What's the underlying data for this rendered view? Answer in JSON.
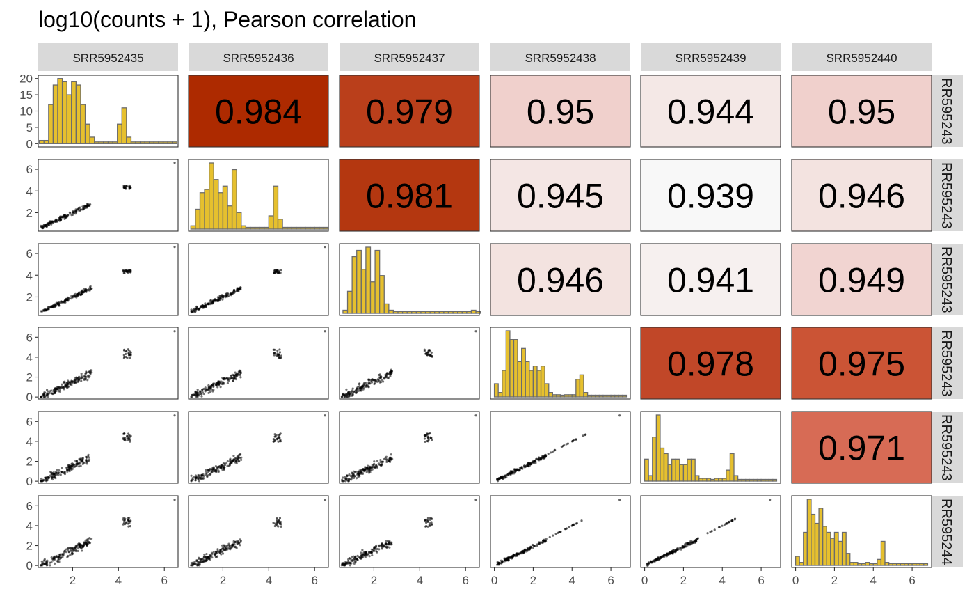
{
  "title": "log10(counts + 1), Pearson correlation",
  "samples": [
    "SRR5952435",
    "SRR5952436",
    "SRR5952437",
    "SRR5952438",
    "SRR5952439",
    "SRR5952440"
  ],
  "row_strip_labels": [
    "RR595243",
    "RR595243",
    "RR595243",
    "RR595243",
    "RR595243",
    "RR595244"
  ],
  "chart_data": {
    "type": "scatter",
    "layout": "pairs-matrix",
    "title": "log10(counts + 1), Pearson correlation",
    "diagonal": "histogram",
    "lower": "scatter",
    "upper": "correlation-tile",
    "correlations": [
      {
        "row": "SRR5952435",
        "col": "SRR5952436",
        "value": "0.984",
        "fill": "#ad2a00"
      },
      {
        "row": "SRR5952435",
        "col": "SRR5952437",
        "value": "0.979",
        "fill": "#ba3f1b"
      },
      {
        "row": "SRR5952435",
        "col": "SRR5952438",
        "value": "0.95",
        "fill": "#f0d0cc"
      },
      {
        "row": "SRR5952435",
        "col": "SRR5952439",
        "value": "0.944",
        "fill": "#f4e8e6"
      },
      {
        "row": "SRR5952435",
        "col": "SRR5952440",
        "value": "0.95",
        "fill": "#f0d0cc"
      },
      {
        "row": "SRR5952436",
        "col": "SRR5952437",
        "value": "0.981",
        "fill": "#b43710"
      },
      {
        "row": "SRR5952436",
        "col": "SRR5952438",
        "value": "0.945",
        "fill": "#f4e6e4"
      },
      {
        "row": "SRR5952436",
        "col": "SRR5952439",
        "value": "0.939",
        "fill": "#f8f8f8"
      },
      {
        "row": "SRR5952436",
        "col": "SRR5952440",
        "value": "0.946",
        "fill": "#f3e3e0"
      },
      {
        "row": "SRR5952437",
        "col": "SRR5952438",
        "value": "0.946",
        "fill": "#f3e3e0"
      },
      {
        "row": "SRR5952437",
        "col": "SRR5952439",
        "value": "0.941",
        "fill": "#f6f0ef"
      },
      {
        "row": "SRR5952437",
        "col": "SRR5952440",
        "value": "0.949",
        "fill": "#f1d4d1"
      },
      {
        "row": "SRR5952438",
        "col": "SRR5952439",
        "value": "0.978",
        "fill": "#c14728"
      },
      {
        "row": "SRR5952438",
        "col": "SRR5952440",
        "value": "0.975",
        "fill": "#cb5435"
      },
      {
        "row": "SRR5952439",
        "col": "SRR5952440",
        "value": "0.971",
        "fill": "#d76b55"
      }
    ],
    "x_ticks": [
      [
        2,
        4,
        6
      ],
      [
        2,
        4,
        6
      ],
      [
        2,
        4,
        6
      ],
      [
        0,
        2,
        4,
        6
      ],
      [
        0,
        2,
        4,
        6
      ],
      [
        0,
        2,
        4,
        6
      ]
    ],
    "x_ranges": [
      [
        0.5,
        6.6
      ],
      [
        0.5,
        6.6
      ],
      [
        0.5,
        6.6
      ],
      [
        -0.2,
        7.0
      ],
      [
        -0.2,
        7.0
      ],
      [
        -0.2,
        7.0
      ]
    ],
    "y_ticks": [
      [
        0,
        5,
        10,
        15,
        20
      ],
      [
        2,
        4,
        6
      ],
      [
        2,
        4,
        6
      ],
      [
        0,
        2,
        4,
        6
      ],
      [
        0,
        2,
        4,
        6
      ],
      [
        0,
        2,
        4,
        6
      ]
    ],
    "y_ranges": [
      [
        -1,
        21
      ],
      [
        0.3,
        6.9
      ],
      [
        0.3,
        6.9
      ],
      [
        -0.2,
        7.0
      ],
      [
        -0.2,
        7.0
      ],
      [
        -0.2,
        7.0
      ]
    ],
    "histograms": [
      {
        "sample": "SRR5952435",
        "bins": [
          [
            0.55,
            0.75,
            1
          ],
          [
            0.75,
            0.95,
            1
          ],
          [
            0.95,
            1.15,
            12
          ],
          [
            1.15,
            1.35,
            18
          ],
          [
            1.35,
            1.55,
            20
          ],
          [
            1.55,
            1.75,
            19
          ],
          [
            1.75,
            1.95,
            15
          ],
          [
            1.95,
            2.15,
            19
          ],
          [
            2.15,
            2.35,
            18
          ],
          [
            2.35,
            2.55,
            12
          ],
          [
            2.55,
            2.75,
            6
          ],
          [
            2.75,
            2.95,
            2
          ],
          [
            2.95,
            3.15,
            0
          ],
          [
            4.0,
            4.2,
            6
          ],
          [
            4.2,
            4.4,
            11
          ],
          [
            4.4,
            4.6,
            2
          ],
          [
            6.3,
            6.5,
            1
          ]
        ]
      },
      {
        "sample": "SRR5952436",
        "bins": [
          [
            0.6,
            0.8,
            1
          ],
          [
            0.8,
            1.0,
            6
          ],
          [
            1.0,
            1.2,
            11
          ],
          [
            1.2,
            1.4,
            12
          ],
          [
            1.4,
            1.6,
            20
          ],
          [
            1.6,
            1.8,
            15
          ],
          [
            1.8,
            2.0,
            11
          ],
          [
            2.0,
            2.2,
            13
          ],
          [
            2.2,
            2.4,
            7
          ],
          [
            2.4,
            2.6,
            18
          ],
          [
            2.6,
            2.8,
            5
          ],
          [
            2.8,
            3.0,
            1
          ],
          [
            4.0,
            4.2,
            4
          ],
          [
            4.2,
            4.4,
            13
          ],
          [
            4.4,
            4.6,
            3
          ],
          [
            6.3,
            6.5,
            1
          ]
        ]
      },
      {
        "sample": "SRR5952437",
        "bins": [
          [
            0.65,
            0.85,
            1
          ],
          [
            0.85,
            1.05,
            7
          ],
          [
            1.05,
            1.25,
            18
          ],
          [
            1.25,
            1.45,
            20
          ],
          [
            1.45,
            1.65,
            14
          ],
          [
            1.65,
            1.85,
            21
          ],
          [
            1.85,
            2.05,
            10
          ],
          [
            2.05,
            2.25,
            20
          ],
          [
            2.25,
            2.45,
            12
          ],
          [
            2.45,
            2.65,
            3
          ],
          [
            2.65,
            2.85,
            1
          ],
          [
            4.0,
            4.2,
            3
          ],
          [
            4.2,
            4.4,
            15
          ],
          [
            4.4,
            4.6,
            2
          ],
          [
            6.3,
            6.5,
            1
          ]
        ]
      },
      {
        "sample": "SRR5952438",
        "bins": [
          [
            0,
            0.2,
            3
          ],
          [
            0.2,
            0.4,
            1
          ],
          [
            0.4,
            0.6,
            6
          ],
          [
            0.6,
            0.8,
            15
          ],
          [
            0.8,
            1.0,
            13
          ],
          [
            1.0,
            1.2,
            13
          ],
          [
            1.2,
            1.4,
            8
          ],
          [
            1.4,
            1.6,
            11
          ],
          [
            1.6,
            1.8,
            8
          ],
          [
            1.8,
            2.0,
            6
          ],
          [
            2.0,
            2.2,
            7
          ],
          [
            2.2,
            2.4,
            6
          ],
          [
            2.4,
            2.6,
            7
          ],
          [
            2.6,
            2.8,
            3
          ],
          [
            2.8,
            3.0,
            1
          ],
          [
            3.0,
            3.2,
            0.5
          ],
          [
            3.2,
            3.4,
            0.5
          ],
          [
            3.6,
            3.8,
            0.5
          ],
          [
            3.8,
            4.0,
            0.5
          ],
          [
            4.0,
            4.2,
            0.5
          ],
          [
            4.2,
            4.4,
            4
          ],
          [
            4.4,
            4.6,
            5
          ],
          [
            4.6,
            4.8,
            1
          ],
          [
            6.5,
            6.7,
            0.5
          ]
        ]
      },
      {
        "sample": "SRR5952439",
        "bins": [
          [
            0,
            0.2,
            4
          ],
          [
            0.2,
            0.4,
            1
          ],
          [
            0.4,
            0.6,
            8
          ],
          [
            0.6,
            0.8,
            12
          ],
          [
            0.8,
            1.0,
            6
          ],
          [
            1.0,
            1.2,
            5
          ],
          [
            1.2,
            1.4,
            3
          ],
          [
            1.4,
            1.6,
            4
          ],
          [
            1.6,
            1.8,
            4
          ],
          [
            1.8,
            2.0,
            3
          ],
          [
            2.0,
            2.2,
            3
          ],
          [
            2.2,
            2.4,
            4
          ],
          [
            2.4,
            2.6,
            4
          ],
          [
            2.6,
            2.8,
            1
          ],
          [
            2.8,
            3.0,
            0.5
          ],
          [
            3.0,
            3.2,
            0.5
          ],
          [
            3.2,
            3.4,
            0.5
          ],
          [
            3.6,
            3.8,
            0.5
          ],
          [
            3.8,
            4.0,
            0.5
          ],
          [
            4.0,
            4.2,
            0.5
          ],
          [
            4.2,
            4.4,
            2
          ],
          [
            4.4,
            4.6,
            5
          ],
          [
            4.6,
            4.8,
            1
          ],
          [
            6.5,
            6.7,
            0.5
          ]
        ]
      },
      {
        "sample": "SRR5952440",
        "bins": [
          [
            0,
            0.2,
            3
          ],
          [
            0.2,
            0.4,
            1
          ],
          [
            0.4,
            0.6,
            11
          ],
          [
            0.6,
            0.8,
            22
          ],
          [
            0.8,
            1.0,
            17
          ],
          [
            1.0,
            1.2,
            14
          ],
          [
            1.2,
            1.4,
            19
          ],
          [
            1.4,
            1.6,
            13
          ],
          [
            1.6,
            1.8,
            11
          ],
          [
            1.8,
            2.0,
            9
          ],
          [
            2.0,
            2.2,
            11
          ],
          [
            2.2,
            2.4,
            8
          ],
          [
            2.4,
            2.6,
            11
          ],
          [
            2.6,
            2.8,
            4
          ],
          [
            2.8,
            3.0,
            1
          ],
          [
            3.0,
            3.2,
            1
          ],
          [
            3.2,
            3.4,
            0.5
          ],
          [
            3.6,
            3.8,
            1
          ],
          [
            3.8,
            4.0,
            0.5
          ],
          [
            4.0,
            4.2,
            0.5
          ],
          [
            4.2,
            4.4,
            2
          ],
          [
            4.4,
            4.6,
            8
          ],
          [
            4.6,
            4.8,
            1
          ],
          [
            6.5,
            6.7,
            1
          ]
        ]
      }
    ],
    "scatter_structure": {
      "group_a_x_range": [
        0.5,
        3.0
      ],
      "group_b_x_center": 4.3,
      "outlier": [
        6.5,
        6.6
      ]
    }
  }
}
